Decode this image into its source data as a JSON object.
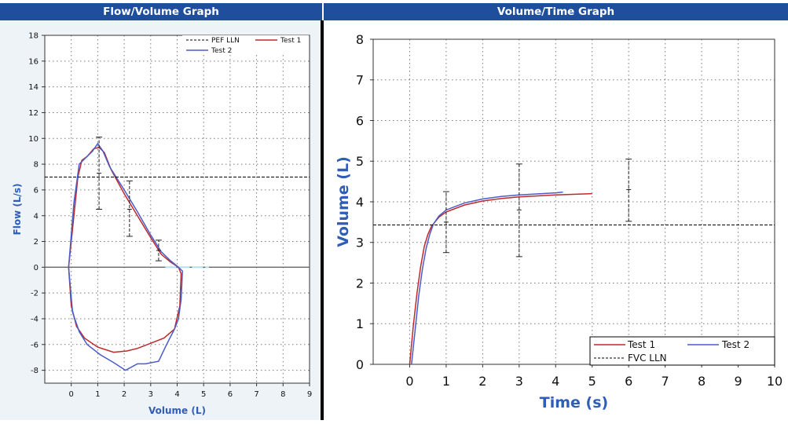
{
  "panels": {
    "left_title": "Flow/Volume Graph",
    "right_title": "Volume/Time Graph"
  },
  "colors": {
    "title_bar": "#1f4e9d",
    "test1": "#c0282a",
    "test2": "#4a5cc8",
    "axis_label": "#2f5db8",
    "reference": "#000000"
  },
  "chart_data": [
    {
      "type": "line",
      "title": "Flow/Volume Graph",
      "xlabel": "Volume (L)",
      "ylabel": "Flow (L/s)",
      "xlim": [
        -1,
        9
      ],
      "ylim": [
        -9,
        18
      ],
      "xticks": [
        0,
        1,
        2,
        3,
        4,
        5,
        6,
        7,
        8,
        9
      ],
      "yticks": [
        -8,
        -6,
        -4,
        -2,
        0,
        2,
        4,
        6,
        8,
        10,
        12,
        14,
        16,
        18
      ],
      "grid": true,
      "legend": {
        "placement": "top-right",
        "entries": [
          "PEF LLN",
          "Test 1",
          "Test 2"
        ]
      },
      "series": [
        {
          "name": "Test 1",
          "x": [
            -0.1,
            0.1,
            0.25,
            0.4,
            0.6,
            0.85,
            1.05,
            1.25,
            1.5,
            2.0,
            2.5,
            3.0,
            3.4,
            3.75,
            4.05,
            4.15,
            4.1,
            3.9,
            3.5,
            3.0,
            2.5,
            2.1,
            1.6,
            1.0,
            0.5,
            0.2,
            0.0,
            -0.1
          ],
          "y": [
            0,
            4.0,
            7.0,
            8.3,
            8.6,
            9.2,
            9.3,
            8.9,
            7.6,
            5.7,
            4.0,
            2.3,
            1.0,
            0.4,
            0.0,
            -0.5,
            -3.0,
            -4.8,
            -5.5,
            -5.9,
            -6.3,
            -6.5,
            -6.6,
            -6.2,
            -5.5,
            -4.6,
            -3.0,
            0
          ],
          "color": "#c0282a"
        },
        {
          "name": "Test 2",
          "x": [
            -0.1,
            0.1,
            0.3,
            0.5,
            0.8,
            1.0,
            1.2,
            1.45,
            2.0,
            2.5,
            3.0,
            3.4,
            3.75,
            4.05,
            4.2,
            4.15,
            4.05,
            3.9,
            3.6,
            3.3,
            2.8,
            2.5,
            2.05,
            1.6,
            1.1,
            0.6,
            0.3,
            0.05,
            -0.1
          ],
          "y": [
            0,
            5.0,
            8.0,
            8.4,
            9.0,
            9.6,
            9.0,
            7.8,
            6.0,
            4.3,
            2.5,
            1.2,
            0.5,
            0.0,
            -0.3,
            -2.5,
            -4.0,
            -4.8,
            -6.0,
            -7.3,
            -7.5,
            -7.5,
            -8.0,
            -7.4,
            -6.8,
            -6.0,
            -5.0,
            -3.5,
            0
          ],
          "color": "#4a5cc8"
        },
        {
          "name": "PEF LLN",
          "x": [
            -1,
            9
          ],
          "y": [
            7.0,
            7.0
          ],
          "color": "#000000",
          "dash": true
        }
      ],
      "error_bars": [
        {
          "x": 1.05,
          "low": 4.5,
          "high": 10.1,
          "mid": 7.3
        },
        {
          "x": 2.2,
          "low": 2.4,
          "high": 6.7,
          "mid": 4.5
        },
        {
          "x": 3.3,
          "low": 0.5,
          "high": 2.1,
          "mid": 1.3
        }
      ]
    },
    {
      "type": "line",
      "title": "Volume/Time Graph",
      "xlabel": "Time (s)",
      "ylabel": "Volume (L)",
      "xlim": [
        -1,
        10
      ],
      "ylim": [
        0,
        8
      ],
      "xticks": [
        0,
        1,
        2,
        3,
        4,
        5,
        6,
        7,
        8,
        9,
        10
      ],
      "yticks": [
        0,
        1,
        2,
        3,
        4,
        5,
        6,
        7,
        8
      ],
      "grid": true,
      "legend": {
        "placement": "bottom-right",
        "entries": [
          "Test 1",
          "Test 2",
          "FVC LLN"
        ]
      },
      "series": [
        {
          "name": "Test 1",
          "x": [
            0,
            0.1,
            0.2,
            0.3,
            0.4,
            0.5,
            0.6,
            0.8,
            1.0,
            1.5,
            2.0,
            2.5,
            3.0,
            4.0,
            5.0
          ],
          "y": [
            0,
            0.95,
            1.75,
            2.4,
            2.9,
            3.2,
            3.4,
            3.62,
            3.75,
            3.92,
            4.02,
            4.08,
            4.12,
            4.17,
            4.2
          ],
          "color": "#c0282a"
        },
        {
          "name": "Test 2",
          "x": [
            0.05,
            0.15,
            0.25,
            0.35,
            0.45,
            0.55,
            0.65,
            0.8,
            1.0,
            1.5,
            2.0,
            2.5,
            3.0,
            4.0,
            4.2
          ],
          "y": [
            0,
            0.85,
            1.7,
            2.35,
            2.85,
            3.2,
            3.45,
            3.65,
            3.8,
            3.97,
            4.07,
            4.13,
            4.17,
            4.22,
            4.24
          ],
          "color": "#4a5cc8"
        },
        {
          "name": "FVC LLN",
          "x": [
            -1,
            10
          ],
          "y": [
            3.43,
            3.43
          ],
          "color": "#000000",
          "dash": true
        }
      ],
      "error_bars": [
        {
          "x": 1.0,
          "low": 2.75,
          "high": 4.25,
          "mid": 3.5
        },
        {
          "x": 3.0,
          "low": 2.65,
          "high": 4.93,
          "mid": 3.8
        },
        {
          "x": 6.0,
          "low": 3.52,
          "high": 5.05,
          "mid": 4.3
        }
      ]
    }
  ]
}
